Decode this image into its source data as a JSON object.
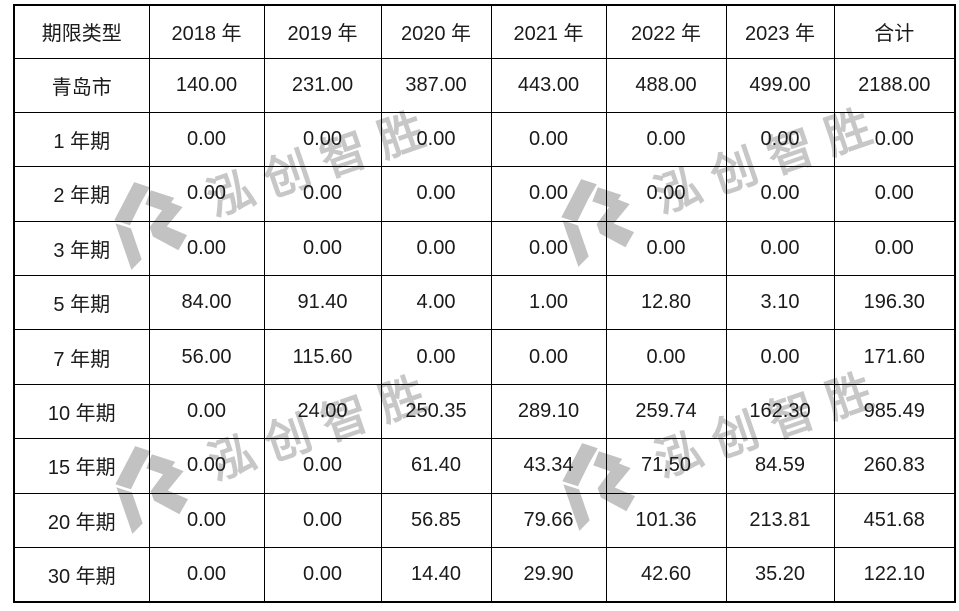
{
  "table": {
    "columns": [
      "期限类型",
      "2018 年",
      "2019 年",
      "2020 年",
      "2021 年",
      "2022 年",
      "2023 年",
      "合计"
    ],
    "rows": [
      {
        "label": "青岛市",
        "values": [
          "140.00",
          "231.00",
          "387.00",
          "443.00",
          "488.00",
          "499.00",
          "2188.00"
        ]
      },
      {
        "label": "1 年期",
        "values": [
          "0.00",
          "0.00",
          "0.00",
          "0.00",
          "0.00",
          "0.00",
          "0.00"
        ]
      },
      {
        "label": "2 年期",
        "values": [
          "0.00",
          "0.00",
          "0.00",
          "0.00",
          "0.00",
          "0.00",
          "0.00"
        ]
      },
      {
        "label": "3 年期",
        "values": [
          "0.00",
          "0.00",
          "0.00",
          "0.00",
          "0.00",
          "0.00",
          "0.00"
        ]
      },
      {
        "label": "5 年期",
        "values": [
          "84.00",
          "91.40",
          "4.00",
          "1.00",
          "12.80",
          "3.10",
          "196.30"
        ]
      },
      {
        "label": "7 年期",
        "values": [
          "56.00",
          "115.60",
          "0.00",
          "0.00",
          "0.00",
          "0.00",
          "171.60"
        ]
      },
      {
        "label": "10 年期",
        "values": [
          "0.00",
          "24.00",
          "250.35",
          "289.10",
          "259.74",
          "162.30",
          "985.49"
        ]
      },
      {
        "label": "15 年期",
        "values": [
          "0.00",
          "0.00",
          "61.40",
          "43.34",
          "71.50",
          "84.59",
          "260.83"
        ]
      },
      {
        "label": "20 年期",
        "values": [
          "0.00",
          "0.00",
          "56.85",
          "79.66",
          "101.36",
          "213.81",
          "451.68"
        ]
      },
      {
        "label": "30 年期",
        "values": [
          "0.00",
          "0.00",
          "14.40",
          "29.90",
          "42.60",
          "35.20",
          "122.10"
        ]
      }
    ]
  },
  "chart_data": {
    "type": "table",
    "title": "",
    "categories": [
      "2018 年",
      "2019 年",
      "2020 年",
      "2021 年",
      "2022 年",
      "2023 年",
      "合计"
    ],
    "series": [
      {
        "name": "青岛市",
        "values": [
          140.0,
          231.0,
          387.0,
          443.0,
          488.0,
          499.0,
          2188.0
        ]
      },
      {
        "name": "1 年期",
        "values": [
          0,
          0,
          0,
          0,
          0,
          0,
          0
        ]
      },
      {
        "name": "2 年期",
        "values": [
          0,
          0,
          0,
          0,
          0,
          0,
          0
        ]
      },
      {
        "name": "3 年期",
        "values": [
          0,
          0,
          0,
          0,
          0,
          0,
          0
        ]
      },
      {
        "name": "5 年期",
        "values": [
          84.0,
          91.4,
          4.0,
          1.0,
          12.8,
          3.1,
          196.3
        ]
      },
      {
        "name": "7 年期",
        "values": [
          56.0,
          115.6,
          0,
          0,
          0,
          0,
          171.6
        ]
      },
      {
        "name": "10 年期",
        "values": [
          0,
          24.0,
          250.35,
          289.1,
          259.74,
          162.3,
          985.49
        ]
      },
      {
        "name": "15 年期",
        "values": [
          0,
          0,
          61.4,
          43.34,
          71.5,
          84.59,
          260.83
        ]
      },
      {
        "name": "20 年期",
        "values": [
          0,
          0,
          56.85,
          79.66,
          101.36,
          213.81,
          451.68
        ]
      },
      {
        "name": "30 年期",
        "values": [
          0,
          0,
          14.4,
          29.9,
          42.6,
          35.2,
          122.1
        ]
      }
    ]
  },
  "watermark": {
    "text": "泓创智胜",
    "text_color": "#c7c7c7",
    "logo_color": "#c2c2c2",
    "count": 4
  },
  "colors": {
    "background": "#ffffff",
    "border": "#000000",
    "text": "#1a1a1a"
  }
}
